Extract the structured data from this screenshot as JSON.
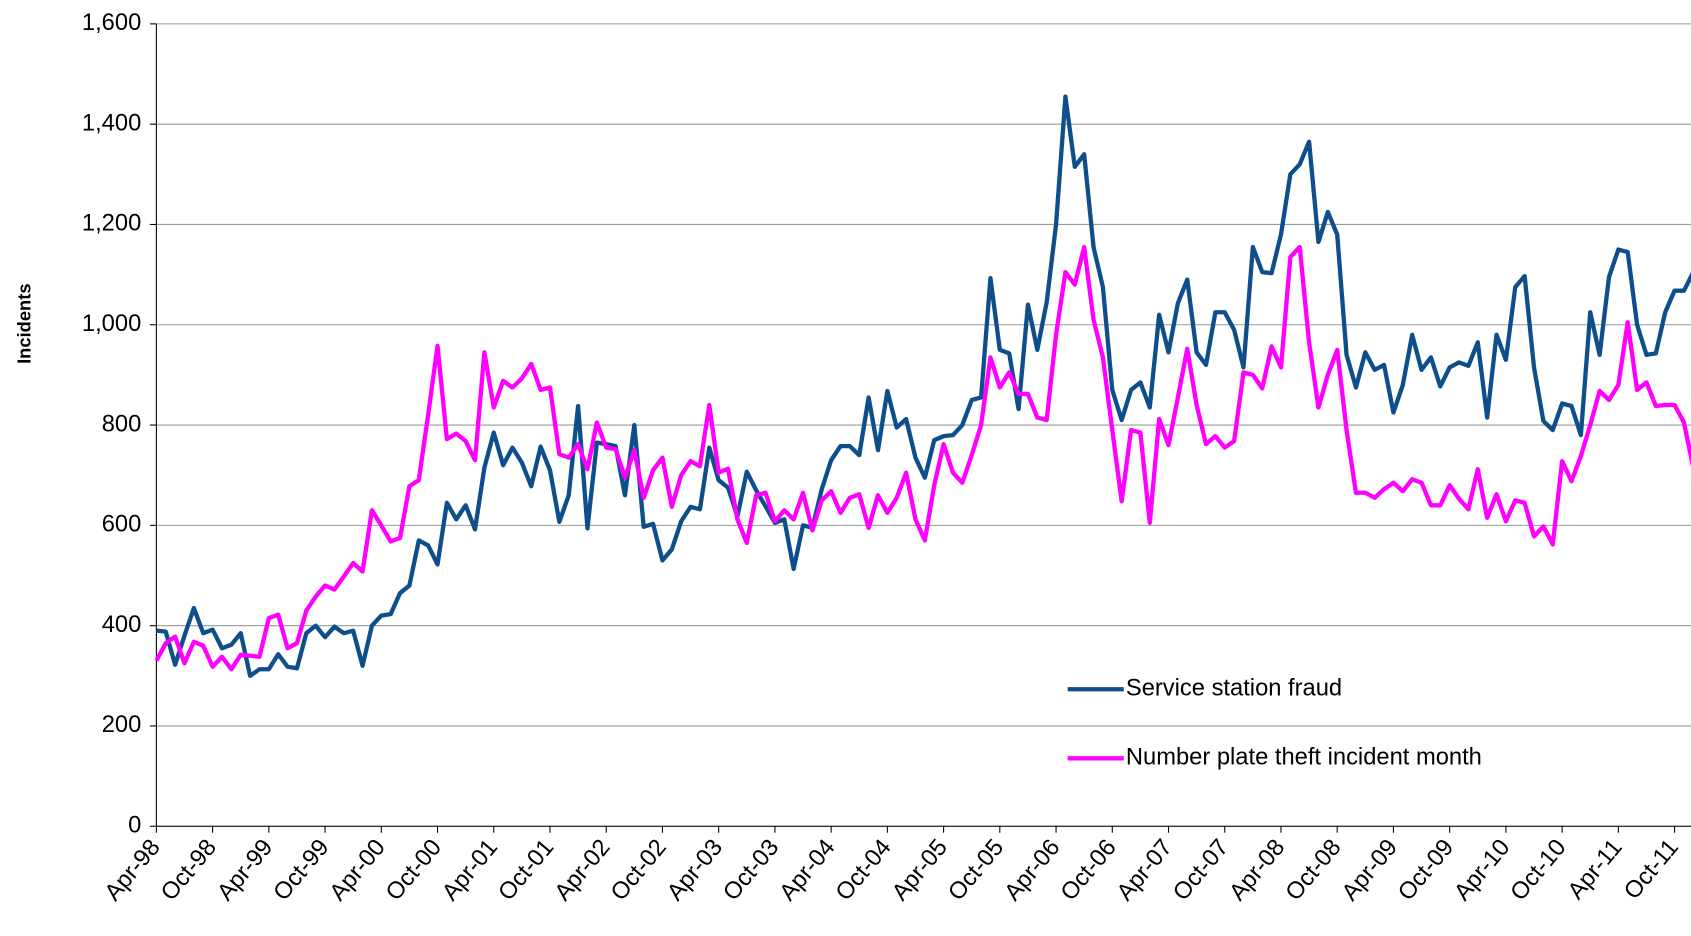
{
  "chart_data": {
    "type": "line",
    "y_label": "Incidents",
    "categories": [
      "Apr-98",
      null,
      null,
      null,
      null,
      null,
      "Oct-98",
      null,
      null,
      null,
      null,
      null,
      "Apr-99",
      null,
      null,
      null,
      null,
      null,
      "Oct-99",
      null,
      null,
      null,
      null,
      null,
      "Apr-00",
      null,
      null,
      null,
      null,
      null,
      "Oct-00",
      null,
      null,
      null,
      null,
      null,
      "Apr-01",
      null,
      null,
      null,
      null,
      null,
      "Oct-01",
      null,
      null,
      null,
      null,
      null,
      "Apr-02",
      null,
      null,
      null,
      null,
      null,
      "Oct-02",
      null,
      null,
      null,
      null,
      null,
      "Apr-03",
      null,
      null,
      null,
      null,
      null,
      "Oct-03",
      null,
      null,
      null,
      null,
      null,
      "Apr-04",
      null,
      null,
      null,
      null,
      null,
      "Oct-04",
      null,
      null,
      null,
      null,
      null,
      "Apr-05",
      null,
      null,
      null,
      null,
      null,
      "Oct-05",
      null,
      null,
      null,
      null,
      null,
      "Apr-06",
      null,
      null,
      null,
      null,
      null,
      "Oct-06",
      null,
      null,
      null,
      null,
      null,
      "Apr-07",
      null,
      null,
      null,
      null,
      null,
      "Oct-07",
      null,
      null,
      null,
      null,
      null,
      "Apr-08",
      null,
      null,
      null,
      null,
      null,
      "Oct-08",
      null,
      null,
      null,
      null,
      null,
      "Apr-09",
      null,
      null,
      null,
      null,
      null,
      "Oct-09",
      null,
      null,
      null,
      null,
      null,
      "Apr-10",
      null,
      null,
      null,
      null,
      null,
      "Oct-10",
      null,
      null,
      null,
      null,
      null,
      "Apr-11",
      null,
      null,
      null,
      null,
      null,
      "Oct-11",
      null,
      null
    ],
    "series": [
      {
        "name": "Service station fraud",
        "color": "#0e4f8b",
        "values": [
          390,
          388,
          322,
          380,
          435,
          385,
          392,
          355,
          362,
          385,
          300,
          313,
          313,
          343,
          318,
          315,
          385,
          400,
          377,
          398,
          385,
          390,
          320,
          400,
          420,
          423,
          465,
          480,
          570,
          560,
          522,
          645,
          612,
          640,
          592,
          715,
          785,
          720,
          755,
          725,
          678,
          757,
          710,
          607,
          660,
          838,
          594,
          765,
          762,
          758,
          660,
          800,
          597,
          603,
          530,
          552,
          608,
          637,
          632,
          755,
          690,
          675,
          618,
          707,
          670,
          638,
          605,
          612,
          513,
          600,
          595,
          672,
          730,
          758,
          758,
          740,
          855,
          750,
          868,
          795,
          812,
          735,
          695,
          770,
          778,
          780,
          800,
          850,
          855,
          1093,
          950,
          943,
          832,
          1040,
          950,
          1045,
          1200,
          1455,
          1315,
          1340,
          1155,
          1075,
          870,
          810,
          870,
          885,
          835,
          1020,
          945,
          1043,
          1090,
          945,
          920,
          1025,
          1025,
          990,
          915,
          1155,
          1105,
          1103,
          1180,
          1300,
          1320,
          1365,
          1165,
          1225,
          1180,
          940,
          875,
          945,
          910,
          920,
          825,
          880,
          980,
          910,
          935,
          877,
          915,
          925,
          918,
          965,
          815,
          980,
          930,
          1075,
          1097,
          915,
          808,
          790,
          843,
          838,
          780,
          1025,
          940,
          1095,
          1150,
          1145,
          1000,
          940,
          943,
          1025,
          1068,
          1068,
          1105
        ]
      },
      {
        "name": "Number plate theft incident month",
        "color": "#ff00ff",
        "values": [
          330,
          365,
          378,
          325,
          368,
          360,
          318,
          338,
          313,
          342,
          340,
          338,
          415,
          422,
          355,
          365,
          430,
          458,
          480,
          472,
          498,
          525,
          508,
          630,
          600,
          568,
          575,
          678,
          690,
          820,
          958,
          772,
          783,
          768,
          730,
          945,
          835,
          888,
          875,
          893,
          922,
          870,
          875,
          742,
          735,
          762,
          712,
          805,
          755,
          752,
          695,
          750,
          655,
          710,
          735,
          637,
          700,
          728,
          718,
          840,
          705,
          713,
          612,
          565,
          660,
          665,
          608,
          630,
          612,
          665,
          590,
          650,
          668,
          625,
          655,
          662,
          595,
          660,
          625,
          655,
          705,
          612,
          570,
          680,
          762,
          705,
          685,
          740,
          800,
          935,
          875,
          905,
          862,
          862,
          815,
          810,
          980,
          1105,
          1080,
          1155,
          1010,
          935,
          790,
          648,
          790,
          785,
          605,
          812,
          760,
          855,
          952,
          840,
          762,
          778,
          755,
          768,
          905,
          900,
          873,
          957,
          915,
          1135,
          1155,
          965,
          835,
          900,
          950,
          790,
          665,
          665,
          655,
          672,
          685,
          668,
          692,
          685,
          640,
          640,
          680,
          653,
          632,
          712,
          615,
          662,
          608,
          650,
          645,
          578,
          598,
          562,
          728,
          688,
          738,
          800,
          868,
          850,
          880,
          1005,
          870,
          885,
          838,
          840,
          840,
          805,
          715
        ]
      }
    ],
    "ylim": [
      0,
      1600
    ],
    "yticks": [
      0,
      200,
      400,
      600,
      800,
      {
        "value": 1000,
        "label": "1,000"
      },
      {
        "value": 1200,
        "label": "1,200"
      },
      {
        "value": 1400,
        "label": "1,400"
      },
      {
        "value": 1600,
        "label": "1,600"
      }
    ],
    "grid": true,
    "legend": "lower right"
  }
}
